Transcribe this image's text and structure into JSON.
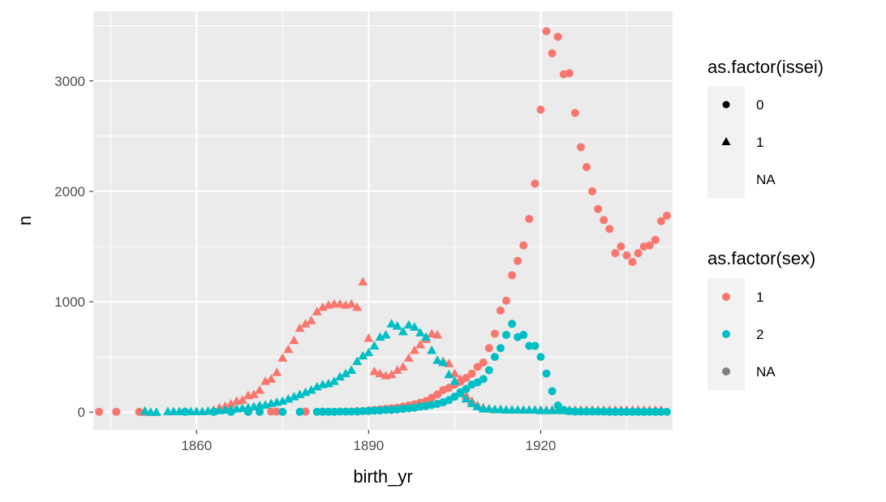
{
  "chart_data": {
    "type": "scatter",
    "xlabel": "birth_yr",
    "ylabel": "n",
    "xlim": [
      1842,
      1943
    ],
    "ylim": [
      -160,
      3630
    ],
    "x_ticks": [
      1860,
      1890,
      1920
    ],
    "y_ticks": [
      0,
      1000,
      2000,
      3000
    ],
    "grid": true,
    "legend_position": "right",
    "colors": {
      "1": "#F8766D",
      "2": "#00BFC4",
      "NA": "#7F7F7F"
    },
    "legends": [
      {
        "title": "as.factor(issei)",
        "entries": [
          {
            "label": "0",
            "shape": "circle"
          },
          {
            "label": "1",
            "shape": "triangle"
          },
          {
            "label": "NA",
            "shape": "none"
          }
        ]
      },
      {
        "title": "as.factor(sex)",
        "entries": [
          {
            "label": "1",
            "color": "#F8766D"
          },
          {
            "label": "2",
            "color": "#00BFC4"
          },
          {
            "label": "NA",
            "color": "#7F7F7F"
          }
        ]
      }
    ],
    "series": [
      {
        "sex": "1",
        "issei": "0",
        "x": [
          1843,
          1846,
          1850,
          1866,
          1869,
          1873,
          1874,
          1879,
          1882,
          1886,
          1888,
          1890,
          1891,
          1892,
          1893,
          1894,
          1895,
          1896,
          1897,
          1898,
          1899,
          1900,
          1901,
          1902,
          1903,
          1904,
          1905,
          1906,
          1907,
          1908,
          1909,
          1910,
          1911,
          1912,
          1913,
          1914,
          1915,
          1916,
          1917,
          1918,
          1919,
          1920,
          1921,
          1922,
          1923,
          1924,
          1925,
          1926,
          1927,
          1928,
          1929,
          1930,
          1931,
          1932,
          1933,
          1934,
          1935,
          1936,
          1937,
          1938,
          1939,
          1940,
          1941
        ],
        "y": [
          3,
          3,
          3,
          5,
          5,
          5,
          5,
          5,
          5,
          5,
          10,
          15,
          20,
          25,
          30,
          35,
          40,
          50,
          60,
          70,
          85,
          100,
          130,
          160,
          200,
          220,
          250,
          275,
          310,
          350,
          410,
          450,
          580,
          710,
          920,
          1010,
          1240,
          1370,
          1510,
          1750,
          2070,
          2740,
          3450,
          3250,
          3400,
          3060,
          3070,
          2710,
          2400,
          2220,
          2000,
          1840,
          1740,
          1660,
          1440,
          1500,
          1420,
          1360,
          1440,
          1500,
          1510,
          1560,
          1730
        ]
      },
      {
        "sex": "1",
        "issei": "0",
        "x": [
          1942
        ],
        "y": [
          1780
        ]
      },
      {
        "sex": "1",
        "issei": "1",
        "x": [
          1851,
          1860,
          1863,
          1864,
          1865,
          1866,
          1867,
          1868,
          1869,
          1870,
          1871,
          1872,
          1873,
          1874,
          1875,
          1876,
          1877,
          1878,
          1879,
          1880,
          1881,
          1882,
          1883,
          1884,
          1885,
          1886,
          1887,
          1888,
          1889,
          1890,
          1891,
          1892,
          1893,
          1894,
          1895,
          1896,
          1897,
          1898,
          1899,
          1900,
          1901,
          1902,
          1903,
          1904,
          1905,
          1906,
          1907,
          1908,
          1909,
          1910,
          1911,
          1912,
          1913,
          1914,
          1915,
          1916,
          1917,
          1918,
          1919,
          1920,
          1921,
          1922,
          1923,
          1924,
          1925,
          1926,
          1927,
          1928,
          1929,
          1930,
          1931,
          1932,
          1933,
          1934,
          1935,
          1936,
          1937,
          1938,
          1939,
          1940,
          1941
        ],
        "y": [
          0,
          5,
          20,
          40,
          55,
          75,
          100,
          110,
          150,
          160,
          200,
          280,
          300,
          360,
          490,
          570,
          650,
          760,
          800,
          830,
          910,
          950,
          970,
          980,
          980,
          970,
          980,
          950,
          1180,
          670,
          370,
          350,
          330,
          340,
          380,
          410,
          490,
          560,
          610,
          660,
          710,
          700,
          460,
          440,
          350,
          300,
          150,
          100,
          60,
          40,
          30,
          25,
          25,
          20,
          20,
          20,
          20,
          20,
          20,
          20,
          20,
          20,
          20,
          20,
          20,
          20,
          20,
          20,
          20,
          20,
          20,
          20,
          20,
          20,
          20,
          20,
          20,
          20,
          20,
          20,
          20
        ]
      },
      {
        "sex": "2",
        "issei": "0",
        "x": [
          1858,
          1863,
          1866,
          1869,
          1871,
          1875,
          1878,
          1881,
          1882,
          1883,
          1884,
          1885,
          1886,
          1887,
          1888,
          1889,
          1890,
          1891,
          1892,
          1893,
          1894,
          1895,
          1896,
          1897,
          1898,
          1899,
          1900,
          1901,
          1902,
          1903,
          1904,
          1905,
          1906,
          1907,
          1908,
          1909,
          1910,
          1911,
          1912,
          1913,
          1914,
          1915,
          1916,
          1917,
          1918,
          1919,
          1920,
          1921,
          1922,
          1923,
          1924,
          1925,
          1926,
          1927,
          1928,
          1929,
          1930,
          1931,
          1932,
          1933,
          1934,
          1935,
          1936,
          1937,
          1938,
          1939,
          1940,
          1941,
          1942
        ],
        "y": [
          3,
          3,
          3,
          3,
          3,
          3,
          3,
          3,
          3,
          3,
          3,
          5,
          5,
          5,
          5,
          10,
          10,
          15,
          15,
          20,
          20,
          25,
          30,
          35,
          40,
          50,
          55,
          65,
          75,
          90,
          110,
          140,
          180,
          210,
          250,
          270,
          300,
          380,
          500,
          580,
          700,
          800,
          680,
          700,
          600,
          600,
          500,
          350,
          190,
          60,
          20,
          10,
          5,
          5,
          5,
          5,
          5,
          5,
          3,
          3,
          3,
          3,
          3,
          3,
          3,
          3,
          3,
          3,
          3
        ]
      },
      {
        "sex": "2",
        "issei": "1",
        "x": [
          1851,
          1852,
          1853,
          1855,
          1856,
          1857,
          1858,
          1859,
          1860,
          1861,
          1862,
          1863,
          1864,
          1865,
          1866,
          1867,
          1868,
          1869,
          1870,
          1871,
          1872,
          1873,
          1874,
          1875,
          1876,
          1877,
          1878,
          1879,
          1880,
          1881,
          1882,
          1883,
          1884,
          1885,
          1886,
          1887,
          1888,
          1889,
          1890,
          1891,
          1892,
          1893,
          1894,
          1895,
          1896,
          1897,
          1898,
          1899,
          1900,
          1901,
          1902,
          1903,
          1904,
          1905,
          1906,
          1907,
          1908,
          1909,
          1910,
          1911,
          1912,
          1913,
          1914,
          1915,
          1916,
          1917,
          1918,
          1919,
          1920,
          1921,
          1922,
          1923,
          1924,
          1925,
          1926,
          1927,
          1928,
          1929,
          1930,
          1931,
          1932,
          1933,
          1934,
          1935,
          1936,
          1937,
          1938,
          1939,
          1940
        ],
        "y": [
          10,
          0,
          0,
          5,
          5,
          5,
          5,
          5,
          5,
          5,
          10,
          10,
          15,
          20,
          25,
          30,
          35,
          40,
          50,
          60,
          65,
          80,
          90,
          100,
          120,
          140,
          160,
          180,
          200,
          230,
          250,
          260,
          280,
          320,
          350,
          380,
          460,
          510,
          540,
          600,
          680,
          700,
          800,
          780,
          730,
          790,
          770,
          720,
          680,
          560,
          470,
          450,
          340,
          280,
          170,
          120,
          80,
          50,
          30,
          30,
          25,
          25,
          20,
          20,
          20,
          20,
          20,
          20,
          15,
          15,
          15,
          15,
          15,
          10,
          10,
          10,
          10,
          10,
          10,
          10,
          10,
          5,
          5,
          5,
          5,
          5,
          5,
          5,
          5
        ]
      }
    ]
  }
}
